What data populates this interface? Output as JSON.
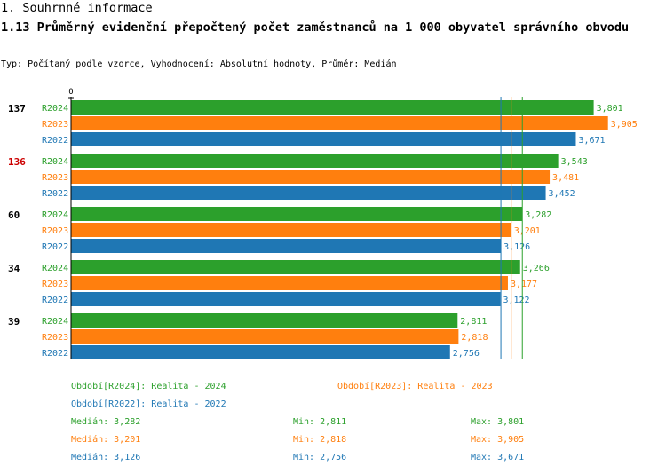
{
  "heading": "1. Souhrnné informace",
  "title": "1.13 Průměrný evidenční přepočtený počet zaměstnanců na 1 000 obyvatel správního obvodu",
  "subtitle": "Typ: Počítaný podle vzorce, Vyhodnocení: Absolutní hodnoty, Průměr: Medián",
  "colors": {
    "R2024": "#2ca02c",
    "R2023": "#ff7f0e",
    "R2022": "#1f77b4",
    "highlight": "#cc0000"
  },
  "chart_data": {
    "type": "bar",
    "orientation": "horizontal",
    "axis_zero_label": "0",
    "groups": [
      {
        "label": "137",
        "highlight": false,
        "bars": [
          {
            "series": "R2024",
            "value": 3.801,
            "label": "3,801"
          },
          {
            "series": "R2023",
            "value": 3.905,
            "label": "3,905"
          },
          {
            "series": "R2022",
            "value": 3.671,
            "label": "3,671"
          }
        ]
      },
      {
        "label": "136",
        "highlight": true,
        "bars": [
          {
            "series": "R2024",
            "value": 3.543,
            "label": "3,543"
          },
          {
            "series": "R2023",
            "value": 3.481,
            "label": "3,481"
          },
          {
            "series": "R2022",
            "value": 3.452,
            "label": "3,452"
          }
        ]
      },
      {
        "label": "60",
        "highlight": false,
        "bars": [
          {
            "series": "R2024",
            "value": 3.282,
            "label": "3,282"
          },
          {
            "series": "R2023",
            "value": 3.201,
            "label": "3,201"
          },
          {
            "series": "R2022",
            "value": 3.126,
            "label": "3,126"
          }
        ]
      },
      {
        "label": "34",
        "highlight": false,
        "bars": [
          {
            "series": "R2024",
            "value": 3.266,
            "label": "3,266"
          },
          {
            "series": "R2023",
            "value": 3.177,
            "label": "3,177"
          },
          {
            "series": "R2022",
            "value": 3.122,
            "label": "3,122"
          }
        ]
      },
      {
        "label": "39",
        "highlight": false,
        "bars": [
          {
            "series": "R2024",
            "value": 2.811,
            "label": "2,811"
          },
          {
            "series": "R2023",
            "value": 2.818,
            "label": "2,818"
          },
          {
            "series": "R2022",
            "value": 2.756,
            "label": "2,756"
          }
        ]
      }
    ],
    "median_lines": [
      {
        "series": "R2024",
        "value": 3.282
      },
      {
        "series": "R2023",
        "value": 3.201
      },
      {
        "series": "R2022",
        "value": 3.126
      }
    ],
    "x_max": 4.12
  },
  "legend": {
    "r2024": "Období[R2024]: Realita - 2024",
    "r2023": "Období[R2023]: Realita - 2023",
    "r2022": "Období[R2022]: Realita - 2022"
  },
  "stats": {
    "r2024": {
      "median": "Medián: 3,282",
      "min": "Min: 2,811",
      "max": "Max: 3,801"
    },
    "r2023": {
      "median": "Medián: 3,201",
      "min": "Min: 2,818",
      "max": "Max: 3,905"
    },
    "r2022": {
      "median": "Medián: 3,126",
      "min": "Min: 2,756",
      "max": "Max: 3,671"
    }
  }
}
